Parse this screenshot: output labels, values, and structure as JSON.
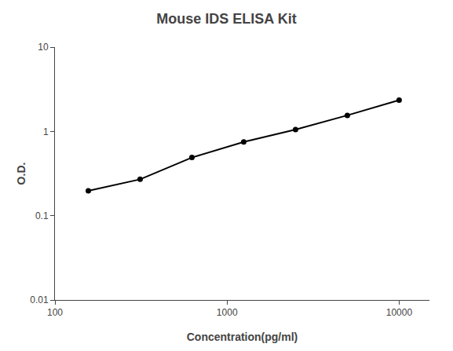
{
  "chart_data": {
    "type": "line",
    "title": "Mouse IDS ELISA Kit",
    "xlabel": "Concentration(pg/ml)",
    "ylabel": "O.D.",
    "x": [
      156.25,
      312.5,
      625,
      1250,
      2500,
      5000,
      10000
    ],
    "values": [
      0.197,
      0.27,
      0.49,
      0.75,
      1.05,
      1.55,
      2.35
    ],
    "color": "#000000",
    "marker": "circle",
    "log": true,
    "xlim": [
      100,
      15000
    ],
    "ylim": [
      0.01,
      10
    ],
    "xticks": [
      100,
      1000,
      10000
    ],
    "yticks": [
      0.01,
      0.1,
      1,
      10
    ],
    "grid": false
  }
}
